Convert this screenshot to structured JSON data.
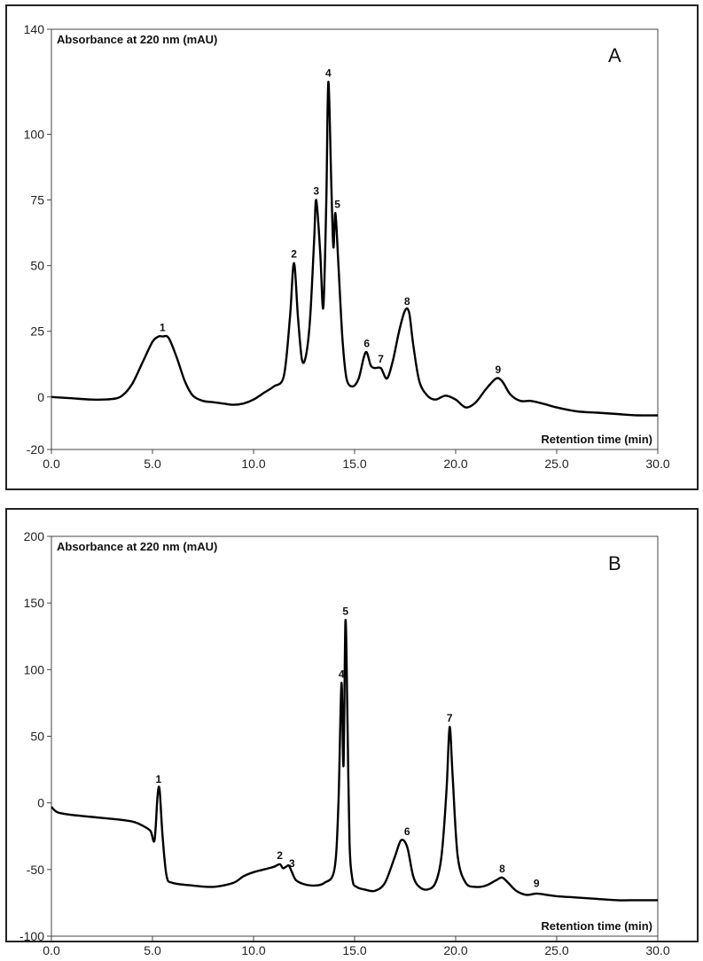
{
  "chart_data": [
    {
      "type": "line",
      "panel": "A",
      "ylabel": "Absorbance at 220 nm (mAU)",
      "xlabel": "Retention time (min)",
      "xlim": [
        0,
        30
      ],
      "ylim": [
        -20,
        140
      ],
      "xticks": [
        "0.0",
        "5.0",
        "10.0",
        "15.0",
        "20.0",
        "25.0",
        "30.0"
      ],
      "xtick_values": [
        0,
        5,
        10,
        15,
        20,
        25,
        30
      ],
      "yticks": [
        "-20",
        "0",
        "25",
        "50",
        "75",
        "100",
        "140"
      ],
      "ytick_values": [
        -20,
        0,
        25,
        50,
        75,
        100,
        140
      ],
      "series": [
        {
          "x": [
            0,
            1,
            2,
            3,
            3.5,
            4,
            4.5,
            5,
            5.3,
            5.5,
            5.8,
            6.2,
            6.6,
            7,
            7.5,
            8,
            8.5,
            9,
            9.5,
            10,
            10.5,
            11,
            11.5,
            11.8,
            12.0,
            12.2,
            12.4,
            12.6,
            12.8,
            13.0,
            13.1,
            13.3,
            13.45,
            13.6,
            13.7,
            13.85,
            13.95,
            14.05,
            14.2,
            14.4,
            14.6,
            14.9,
            15.2,
            15.45,
            15.6,
            15.8,
            16.0,
            16.3,
            16.6,
            16.9,
            17.2,
            17.5,
            17.7,
            17.9,
            18.2,
            18.6,
            19.0,
            19.5,
            20.0,
            20.5,
            21.0,
            21.5,
            22.0,
            22.3,
            22.7,
            23.2,
            23.7,
            24.3,
            25,
            26,
            27,
            28,
            29,
            30
          ],
          "y": [
            0,
            -0.5,
            -1,
            -0.8,
            0.5,
            5,
            13,
            21,
            23,
            23,
            22.5,
            15,
            6,
            0.5,
            -1.5,
            -2,
            -2.5,
            -3,
            -2.5,
            -1,
            1.5,
            4,
            8,
            30,
            51,
            30,
            14,
            16,
            30,
            60,
            75,
            55,
            34,
            75,
            120,
            80,
            57,
            70,
            50,
            22,
            7,
            4,
            7,
            15,
            17,
            12,
            11,
            11,
            7,
            14,
            25,
            33,
            32,
            20,
            6,
            0.5,
            -1,
            0.5,
            -1,
            -4,
            -2,
            3,
            7,
            6,
            1,
            -1.5,
            -1.5,
            -2.5,
            -4,
            -5.5,
            -6,
            -6.5,
            -7,
            -7
          ]
        }
      ],
      "peaks": [
        {
          "label": "1",
          "x": 5.5,
          "y": 23
        },
        {
          "label": "2",
          "x": 12.0,
          "y": 51
        },
        {
          "label": "3",
          "x": 13.1,
          "y": 75
        },
        {
          "label": "4",
          "x": 13.7,
          "y": 120
        },
        {
          "label": "5",
          "x": 14.15,
          "y": 70
        },
        {
          "label": "6",
          "x": 15.6,
          "y": 17
        },
        {
          "label": "7",
          "x": 16.3,
          "y": 11
        },
        {
          "label": "8",
          "x": 17.6,
          "y": 33
        },
        {
          "label": "9",
          "x": 22.1,
          "y": 7
        }
      ],
      "panel_label": "A",
      "grid": false
    },
    {
      "type": "line",
      "panel": "B",
      "ylabel": "Absorbance at 220 nm (mAU)",
      "xlabel": "Retention time (min)",
      "xlim": [
        0,
        30
      ],
      "ylim": [
        -100,
        200
      ],
      "xticks": [
        "0.0",
        "5.0",
        "10.0",
        "15.0",
        "20.0",
        "25.0",
        "30.0"
      ],
      "xtick_values": [
        0,
        5,
        10,
        15,
        20,
        25,
        30
      ],
      "yticks": [
        "-100",
        "-50",
        "0",
        "50",
        "100",
        "150",
        "200"
      ],
      "ytick_values": [
        -100,
        -50,
        0,
        50,
        100,
        150,
        200
      ],
      "series": [
        {
          "x": [
            0,
            0.3,
            1,
            2,
            3,
            4,
            4.5,
            4.9,
            5.1,
            5.25,
            5.35,
            5.5,
            5.7,
            6,
            7,
            8,
            9,
            9.5,
            10,
            10.5,
            11,
            11.3,
            11.45,
            11.6,
            11.75,
            11.9,
            12.1,
            12.5,
            13,
            13.5,
            14.0,
            14.2,
            14.35,
            14.45,
            14.55,
            14.65,
            14.75,
            14.9,
            15.1,
            15.5,
            16,
            16.5,
            17,
            17.3,
            17.6,
            17.9,
            18.2,
            18.6,
            19.0,
            19.3,
            19.55,
            19.7,
            19.85,
            20.1,
            20.5,
            21,
            21.5,
            22.0,
            22.3,
            22.6,
            23,
            23.5,
            24,
            24.5,
            25,
            26,
            27,
            28,
            29,
            30
          ],
          "y": [
            -3,
            -7,
            -9,
            -10.5,
            -12,
            -14,
            -17,
            -21,
            -28,
            5,
            10,
            -25,
            -55,
            -60,
            -62,
            -63,
            -60,
            -55,
            -52,
            -50,
            -48,
            -46,
            -49,
            -48,
            -47,
            -52,
            -58,
            -61,
            -62,
            -60,
            -50,
            0,
            90,
            28,
            137,
            60,
            -30,
            -58,
            -63,
            -65,
            -66,
            -60,
            -40,
            -28,
            -33,
            -55,
            -63,
            -65,
            -60,
            -40,
            10,
            57,
            20,
            -40,
            -60,
            -63,
            -62,
            -58,
            -56,
            -60,
            -66,
            -69,
            -68,
            -69,
            -70,
            -71,
            -72,
            -73,
            -73,
            -73
          ]
        }
      ],
      "peaks": [
        {
          "label": "1",
          "x": 5.3,
          "y": 11
        },
        {
          "label": "2",
          "x": 11.3,
          "y": -46
        },
        {
          "label": "3",
          "x": 11.9,
          "y": -52
        },
        {
          "label": "4",
          "x": 14.35,
          "y": 90
        },
        {
          "label": "5",
          "x": 14.55,
          "y": 137
        },
        {
          "label": "6",
          "x": 17.6,
          "y": -28
        },
        {
          "label": "7",
          "x": 19.7,
          "y": 57
        },
        {
          "label": "8",
          "x": 22.3,
          "y": -56
        },
        {
          "label": "9",
          "x": 24.0,
          "y": -67
        }
      ],
      "panel_label": "B",
      "grid": false
    }
  ],
  "colors": {
    "line": "#000000",
    "frame": "#222222",
    "background": "#ffffff"
  }
}
